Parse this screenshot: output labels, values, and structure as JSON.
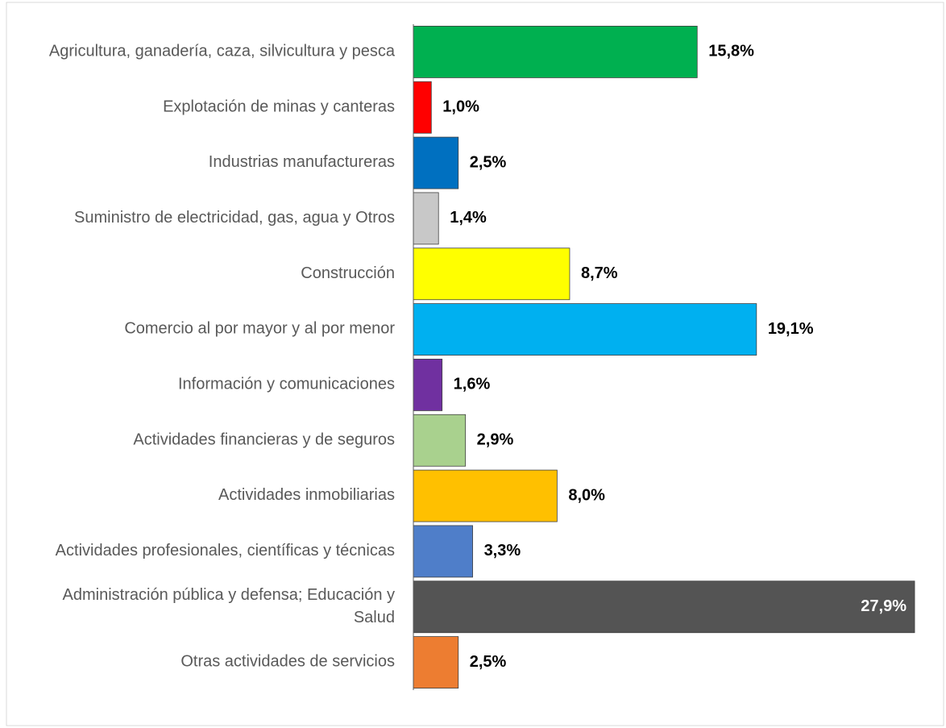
{
  "chart_data": {
    "type": "hbar",
    "categories": [
      "Agricultura, ganadería, caza, silvicultura y pesca",
      "Explotación de minas y canteras",
      "Industrias manufactureras",
      "Suministro de electricidad, gas, agua y Otros",
      "Construcción",
      "Comercio al por mayor y al por menor",
      "Información y comunicaciones",
      "Actividades financieras y de seguros",
      "Actividades inmobiliarias",
      "Actividades profesionales, científicas y técnicas",
      "Administración pública y defensa; Educación y Salud",
      "Otras actividades de servicios"
    ],
    "values": [
      15.8,
      1.0,
      2.5,
      1.4,
      8.7,
      19.1,
      1.6,
      2.9,
      8.0,
      3.3,
      27.9,
      2.5
    ],
    "value_labels": [
      "15,8%",
      "1,0%",
      "2,5%",
      "1,4%",
      "8,7%",
      "19,1%",
      "1,6%",
      "2,9%",
      "8,0%",
      "3,3%",
      "27,9%",
      "2,5%"
    ],
    "colors": [
      "#00b050",
      "#ff0000",
      "#0070c0",
      "#c8c8c8",
      "#ffff00",
      "#00b0f0",
      "#7030a0",
      "#a9d18e",
      "#ffc000",
      "#4f7ec9",
      "#545454",
      "#ed7d31"
    ],
    "xlim": [
      0,
      29.2
    ]
  }
}
